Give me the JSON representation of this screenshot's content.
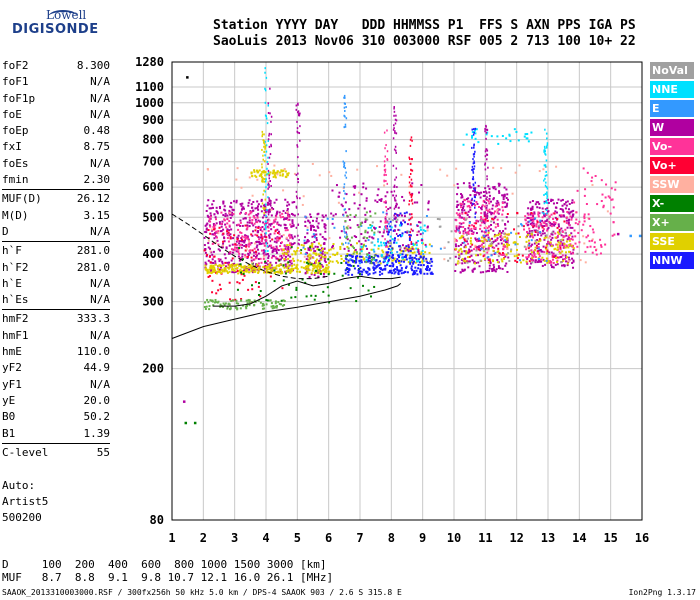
{
  "logo": {
    "line1": "Lowell",
    "line2": "DIGISONDE"
  },
  "header": {
    "line1": "Station YYYY DAY   DDD HHMMSS P1  FFS S AXN PPS IGA PS",
    "line2": "SaoLuis 2013 Nov06 310 003000 RSF 005 2 713 100 10+ 22"
  },
  "params": [
    {
      "k": "foF2",
      "v": "8.300"
    },
    {
      "k": "foF1",
      "v": "N/A"
    },
    {
      "k": "foF1p",
      "v": "N/A"
    },
    {
      "k": "foE",
      "v": "N/A"
    },
    {
      "k": "foEp",
      "v": "0.48"
    },
    {
      "k": "fxI",
      "v": "8.75"
    },
    {
      "k": "foEs",
      "v": "N/A"
    },
    {
      "k": "fmin",
      "v": "2.30"
    },
    {
      "k": "MUF(D)",
      "v": "26.12"
    },
    {
      "k": "M(D)",
      "v": "3.15"
    },
    {
      "k": "D",
      "v": "N/A"
    },
    {
      "k": "h`F",
      "v": "281.0"
    },
    {
      "k": "h`F2",
      "v": "281.0"
    },
    {
      "k": "h`E",
      "v": "N/A"
    },
    {
      "k": "h`Es",
      "v": "N/A"
    },
    {
      "k": "hmF2",
      "v": "333.3"
    },
    {
      "k": "hmF1",
      "v": "N/A"
    },
    {
      "k": "hmE",
      "v": "110.0"
    },
    {
      "k": "yF2",
      "v": "44.9"
    },
    {
      "k": "yF1",
      "v": "N/A"
    },
    {
      "k": "yE",
      "v": "20.0"
    },
    {
      "k": "B0",
      "v": "50.2"
    },
    {
      "k": "B1",
      "v": "1.39"
    },
    {
      "k": "C-level",
      "v": "55"
    }
  ],
  "auto": {
    "line1": "Auto:",
    "line2": "Artist5",
    "line3": "500200"
  },
  "legend": [
    {
      "label": "NoVal",
      "color": "#a0a0a0"
    },
    {
      "label": "NNE",
      "color": "#00e0ff"
    },
    {
      "label": "E",
      "color": "#3399ff"
    },
    {
      "label": "W",
      "color": "#b000a0"
    },
    {
      "label": "Vo-",
      "color": "#ff3399"
    },
    {
      "label": "Vo+",
      "color": "#ff0033"
    },
    {
      "label": "SSW",
      "color": "#ffb0a0"
    },
    {
      "label": "X-",
      "color": "#008000"
    },
    {
      "label": "X+",
      "color": "#66b04a"
    },
    {
      "label": "SSE",
      "color": "#e0d000"
    },
    {
      "label": "NNW",
      "color": "#1a1aff"
    }
  ],
  "dmuf": {
    "d_line": "D     100  200  400  600  800 1000 1500 3000 [km]",
    "muf_line": "MUF   8.7  8.8  9.1  9.8 10.7 12.1 16.0 26.1 [MHz]"
  },
  "footer": {
    "left": "SAAOK_2013310003000.RSF / 300fx256h 50 kHz 5.0 km / DPS-4 SAAOK 903 / 2.6 S 315.8 E",
    "right": "Ion2Png 1.3.17"
  },
  "chart_data": {
    "type": "scatter",
    "title": "",
    "xlabel": "",
    "ylabel": "",
    "xlim": [
      1,
      16
    ],
    "ylim": [
      80,
      1280
    ],
    "yscale": "log",
    "x_ticks": [
      1,
      2,
      3,
      4,
      5,
      6,
      7,
      8,
      9,
      10,
      11,
      12,
      13,
      14,
      15,
      16
    ],
    "y_ticks": [
      80,
      200,
      300,
      400,
      500,
      600,
      700,
      800,
      900,
      1000,
      1100,
      1280
    ],
    "grid": true,
    "legend_position": "right",
    "trace_profile": {
      "x": [
        1.0,
        2.0,
        3.0,
        4.0,
        5.0,
        6.0,
        7.0,
        7.8,
        8.2,
        8.3
      ],
      "y": [
        240,
        258,
        270,
        282,
        290,
        300,
        310,
        322,
        330,
        335
      ]
    },
    "trace_dashed": {
      "x": [
        1.0,
        1.5,
        2.0,
        2.5,
        3.0,
        3.5,
        4.0,
        4.5,
        5.0,
        5.5,
        6.0
      ],
      "y": [
        510,
        480,
        450,
        420,
        395,
        375,
        360,
        350,
        345,
        345,
        350
      ]
    },
    "trace_curve": {
      "x": [
        2.3,
        3.0,
        3.5,
        4.0,
        4.5,
        5.0,
        5.5,
        6.0,
        6.5,
        7.0,
        7.5,
        8.0,
        8.3
      ],
      "y": [
        292,
        292,
        296,
        310,
        330,
        340,
        330,
        335,
        345,
        350,
        345,
        345,
        348
      ]
    },
    "echo_regions": [
      {
        "name": "W",
        "color": "#b000a0",
        "x0": 2.0,
        "x1": 4.9,
        "y0": 360,
        "y1": 560,
        "n": 500
      },
      {
        "name": "W",
        "color": "#b000a0",
        "x0": 5.2,
        "x1": 5.9,
        "y0": 350,
        "y1": 520,
        "n": 120
      },
      {
        "name": "W",
        "color": "#b000a0",
        "x0": 10.0,
        "x1": 11.7,
        "y0": 360,
        "y1": 620,
        "n": 300
      },
      {
        "name": "W",
        "color": "#b000a0",
        "x0": 12.3,
        "x1": 13.8,
        "y0": 370,
        "y1": 560,
        "n": 260
      },
      {
        "name": "Vo-",
        "color": "#ff3399",
        "x0": 2.1,
        "x1": 4.8,
        "y0": 380,
        "y1": 520,
        "n": 160
      },
      {
        "name": "Vo-",
        "color": "#ff3399",
        "x0": 10.0,
        "x1": 11.6,
        "y0": 400,
        "y1": 560,
        "n": 120
      },
      {
        "name": "Vo-",
        "color": "#ff3399",
        "x0": 12.2,
        "x1": 13.8,
        "y0": 380,
        "y1": 520,
        "n": 120
      },
      {
        "name": "Vo+",
        "color": "#ff0033",
        "x0": 2.0,
        "x1": 4.5,
        "y0": 300,
        "y1": 480,
        "n": 80
      },
      {
        "name": "Vo+",
        "color": "#ff0033",
        "x0": 10.0,
        "x1": 13.5,
        "y0": 380,
        "y1": 520,
        "n": 60
      },
      {
        "name": "SSE",
        "color": "#e0d000",
        "x0": 2.0,
        "x1": 6.0,
        "y0": 358,
        "y1": 378,
        "n": 260
      },
      {
        "name": "SSE",
        "color": "#e0d000",
        "x0": 3.5,
        "x1": 4.7,
        "y0": 640,
        "y1": 670,
        "n": 60
      },
      {
        "name": "SSE",
        "color": "#e0d000",
        "x0": 4.5,
        "x1": 9.2,
        "y0": 380,
        "y1": 430,
        "n": 180
      },
      {
        "name": "SSE",
        "color": "#e0d000",
        "x0": 10.0,
        "x1": 13.8,
        "y0": 380,
        "y1": 460,
        "n": 140
      },
      {
        "name": "X+",
        "color": "#66b04a",
        "x0": 2.0,
        "x1": 4.6,
        "y0": 288,
        "y1": 305,
        "n": 90
      },
      {
        "name": "X-",
        "color": "#008000",
        "x0": 3.0,
        "x1": 7.5,
        "y0": 300,
        "y1": 420,
        "n": 70
      },
      {
        "name": "NNW",
        "color": "#1a1aff",
        "x0": 6.5,
        "x1": 9.3,
        "y0": 355,
        "y1": 400,
        "n": 240
      },
      {
        "name": "NNW",
        "color": "#1a1aff",
        "x0": 7.8,
        "x1": 8.6,
        "y0": 395,
        "y1": 520,
        "n": 60
      },
      {
        "name": "NNE",
        "color": "#00e0ff",
        "x0": 7.0,
        "x1": 9.2,
        "y0": 380,
        "y1": 480,
        "n": 60
      },
      {
        "name": "NNE",
        "color": "#00e0ff",
        "x0": 10.0,
        "x1": 12.5,
        "y0": 780,
        "y1": 860,
        "n": 30
      },
      {
        "name": "E",
        "color": "#3399ff",
        "x0": 5.0,
        "x1": 13.0,
        "y0": 380,
        "y1": 520,
        "n": 60
      },
      {
        "name": "SSW",
        "color": "#ffb0a0",
        "x0": 2.0,
        "x1": 15.0,
        "y0": 380,
        "y1": 700,
        "n": 100
      },
      {
        "name": "NoVal",
        "color": "#a0a0a0",
        "x0": 7.0,
        "x1": 14.0,
        "y0": 380,
        "y1": 500,
        "n": 60
      },
      {
        "name": "W",
        "color": "#b000a0",
        "x0": 6.0,
        "x1": 9.2,
        "y0": 400,
        "y1": 620,
        "n": 140
      },
      {
        "name": "Vo-",
        "color": "#ff3399",
        "x0": 13.8,
        "x1": 15.2,
        "y0": 400,
        "y1": 680,
        "n": 70
      },
      {
        "name": "X+",
        "color": "#66b04a",
        "x0": 6.5,
        "x1": 7.5,
        "y0": 380,
        "y1": 520,
        "n": 40
      }
    ],
    "spikes": [
      {
        "x": 4.0,
        "y0": 400,
        "y1": 1280,
        "color": "#00e0ff"
      },
      {
        "x": 4.1,
        "y0": 420,
        "y1": 1100,
        "color": "#b000a0"
      },
      {
        "x": 3.9,
        "y0": 500,
        "y1": 850,
        "color": "#e0d000"
      },
      {
        "x": 5.0,
        "y0": 420,
        "y1": 1020,
        "color": "#b000a0"
      },
      {
        "x": 6.5,
        "y0": 420,
        "y1": 1060,
        "color": "#3399ff"
      },
      {
        "x": 7.8,
        "y0": 420,
        "y1": 900,
        "color": "#ff3399"
      },
      {
        "x": 8.1,
        "y0": 420,
        "y1": 1000,
        "color": "#b000a0"
      },
      {
        "x": 8.6,
        "y0": 430,
        "y1": 840,
        "color": "#ff0033"
      },
      {
        "x": 10.6,
        "y0": 500,
        "y1": 860,
        "color": "#1a1aff"
      },
      {
        "x": 11.0,
        "y0": 500,
        "y1": 880,
        "color": "#b000a0"
      },
      {
        "x": 12.9,
        "y0": 500,
        "y1": 860,
        "color": "#00e0ff"
      }
    ],
    "isolated_points": [
      {
        "x": 1.45,
        "y": 1175,
        "color": "#000000"
      },
      {
        "x": 1.4,
        "y": 145,
        "color": "#008000"
      },
      {
        "x": 1.7,
        "y": 145,
        "color": "#008000"
      },
      {
        "x": 1.35,
        "y": 165,
        "color": "#b000a0"
      },
      {
        "x": 15.6,
        "y": 450,
        "color": "#3399ff"
      },
      {
        "x": 15.9,
        "y": 450,
        "color": "#3399ff"
      },
      {
        "x": 15.2,
        "y": 455,
        "color": "#b000a0"
      }
    ]
  }
}
